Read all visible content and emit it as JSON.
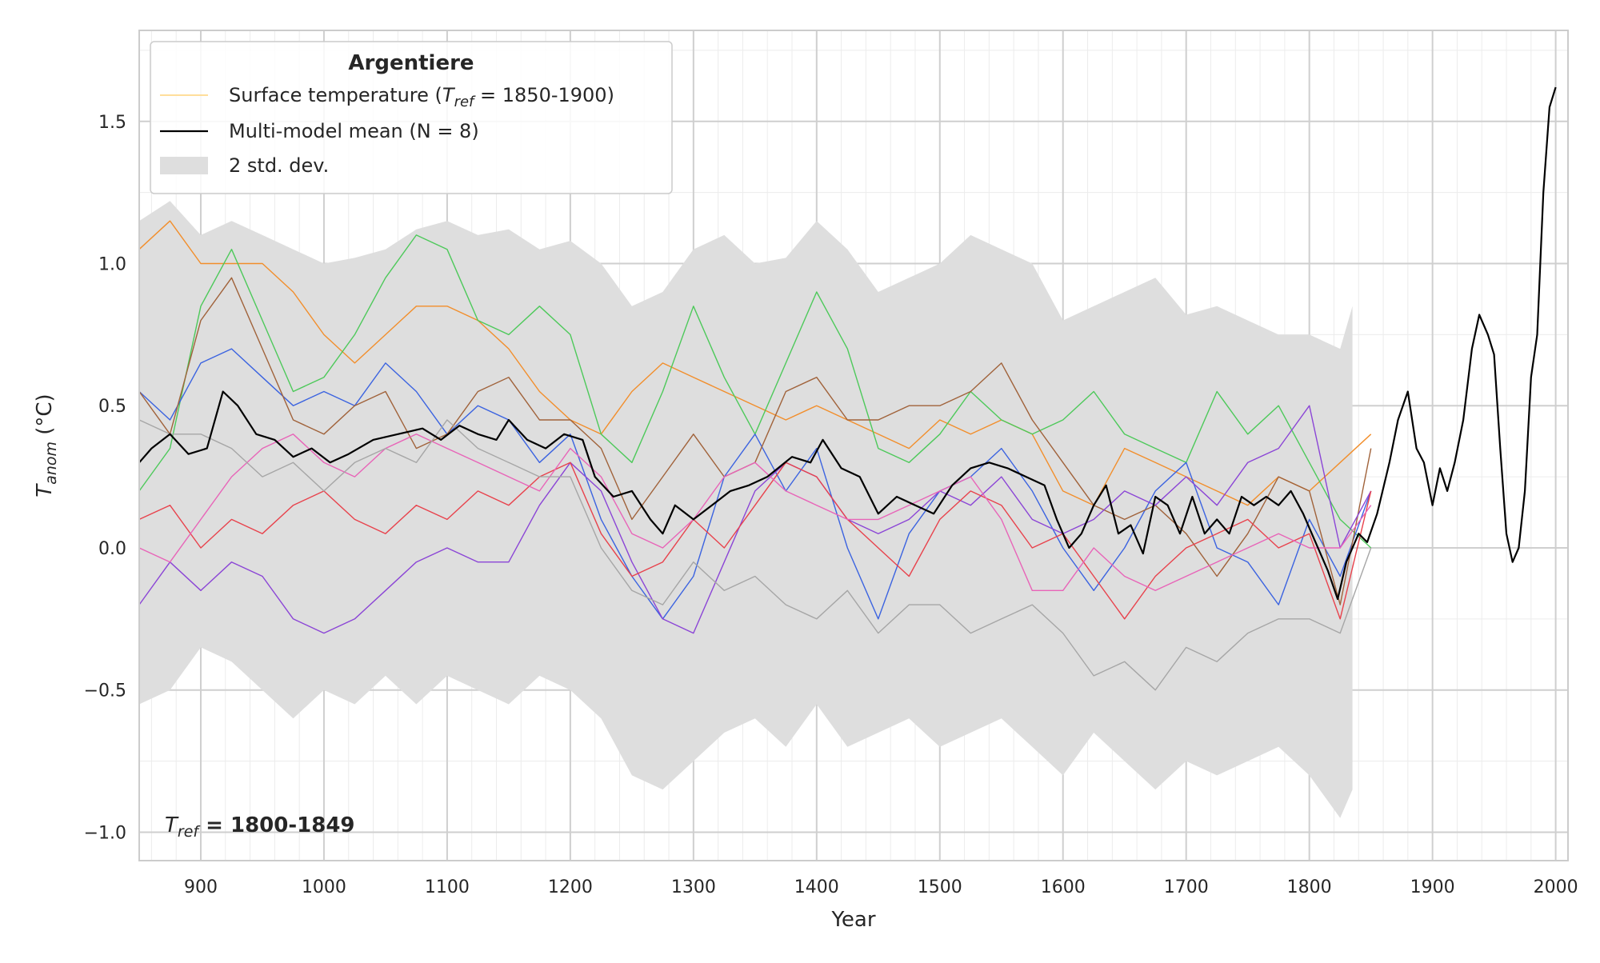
{
  "chart_data": {
    "type": "line",
    "xlabel": "Year",
    "ylabel_main": "T",
    "ylabel_sub": "anom",
    "ylabel_unit": " (°C)",
    "xlim": [
      850,
      2010
    ],
    "ylim": [
      -1.1,
      1.82
    ],
    "grid": true,
    "xticks": [
      900,
      1000,
      1100,
      1200,
      1300,
      1400,
      1500,
      1600,
      1700,
      1800,
      1900,
      2000
    ],
    "yticks": [
      -1.0,
      -0.5,
      0.0,
      0.5,
      1.0,
      1.5
    ],
    "ytick_labels": [
      "−1.0",
      "−0.5",
      "0.0",
      "0.5",
      "1.0",
      "1.5"
    ],
    "legend": {
      "title": "Argentiere",
      "location": "upper-left",
      "entries": [
        {
          "label_pre": "Surface temperature (",
          "label_italic": "T",
          "label_sub": "ref",
          "label_post": " = 1850-1900)",
          "color": "#ffd47a",
          "kind": "line-thin"
        },
        {
          "label": "Multi-model mean (N = 8)",
          "color": "#000000",
          "kind": "line"
        },
        {
          "label": "2 std. dev.",
          "color": "#dedede",
          "kind": "patch"
        }
      ]
    },
    "annotation": {
      "italic": "T",
      "sub": "ref",
      "bold": " = 1800-1849"
    },
    "std_band": {
      "color": "#dedede",
      "x": [
        850,
        875,
        900,
        925,
        950,
        975,
        1000,
        1025,
        1050,
        1075,
        1100,
        1125,
        1150,
        1175,
        1200,
        1225,
        1250,
        1275,
        1300,
        1325,
        1350,
        1375,
        1400,
        1425,
        1450,
        1475,
        1500,
        1525,
        1550,
        1575,
        1600,
        1625,
        1650,
        1675,
        1700,
        1725,
        1750,
        1775,
        1800,
        1825,
        1835
      ],
      "upper": [
        1.15,
        1.22,
        1.1,
        1.15,
        1.1,
        1.05,
        1.0,
        1.02,
        1.05,
        1.12,
        1.15,
        1.1,
        1.12,
        1.05,
        1.08,
        1.0,
        0.85,
        0.9,
        1.05,
        1.1,
        1.0,
        1.02,
        1.15,
        1.05,
        0.9,
        0.95,
        1.0,
        1.1,
        1.05,
        1.0,
        0.8,
        0.85,
        0.9,
        0.95,
        0.82,
        0.85,
        0.8,
        0.75,
        0.75,
        0.7,
        0.85
      ],
      "lower": [
        -0.55,
        -0.5,
        -0.35,
        -0.4,
        -0.5,
        -0.6,
        -0.5,
        -0.55,
        -0.45,
        -0.55,
        -0.45,
        -0.5,
        -0.55,
        -0.45,
        -0.5,
        -0.6,
        -0.8,
        -0.85,
        -0.75,
        -0.65,
        -0.6,
        -0.7,
        -0.55,
        -0.7,
        -0.65,
        -0.6,
        -0.7,
        -0.65,
        -0.6,
        -0.7,
        -0.8,
        -0.65,
        -0.75,
        -0.85,
        -0.75,
        -0.8,
        -0.75,
        -0.7,
        -0.8,
        -0.95,
        -0.85
      ]
    },
    "x": [
      850,
      875,
      900,
      925,
      950,
      975,
      1000,
      1025,
      1050,
      1075,
      1100,
      1125,
      1150,
      1175,
      1200,
      1225,
      1250,
      1275,
      1300,
      1325,
      1350,
      1375,
      1400,
      1425,
      1450,
      1475,
      1500,
      1525,
      1550,
      1575,
      1600,
      1625,
      1650,
      1675,
      1700,
      1725,
      1750,
      1775,
      1800,
      1825,
      1850
    ],
    "series": [
      {
        "color": "#f28e2b",
        "values": [
          1.05,
          1.15,
          1.0,
          1.0,
          1.0,
          0.9,
          0.75,
          0.65,
          0.75,
          0.85,
          0.85,
          0.8,
          0.7,
          0.55,
          0.45,
          0.4,
          0.55,
          0.65,
          0.6,
          0.55,
          0.5,
          0.45,
          0.5,
          0.45,
          0.4,
          0.35,
          0.45,
          0.4,
          0.45,
          0.4,
          0.2,
          0.15,
          0.35,
          0.3,
          0.25,
          0.2,
          0.15,
          0.25,
          0.2,
          0.3,
          0.4
        ]
      },
      {
        "color": "#4dc95a",
        "values": [
          0.2,
          0.35,
          0.85,
          1.05,
          0.8,
          0.55,
          0.6,
          0.75,
          0.95,
          1.1,
          1.05,
          0.8,
          0.75,
          0.85,
          0.75,
          0.4,
          0.3,
          0.55,
          0.85,
          0.6,
          0.4,
          0.65,
          0.9,
          0.7,
          0.35,
          0.3,
          0.4,
          0.55,
          0.45,
          0.4,
          0.45,
          0.55,
          0.4,
          0.35,
          0.3,
          0.55,
          0.4,
          0.5,
          0.3,
          0.1,
          0.0
        ]
      },
      {
        "color": "#3b63e0",
        "values": [
          0.55,
          0.45,
          0.65,
          0.7,
          0.6,
          0.5,
          0.55,
          0.5,
          0.65,
          0.55,
          0.4,
          0.5,
          0.45,
          0.3,
          0.4,
          0.1,
          -0.1,
          -0.25,
          -0.1,
          0.25,
          0.4,
          0.2,
          0.35,
          0.0,
          -0.25,
          0.05,
          0.2,
          0.25,
          0.35,
          0.2,
          0.0,
          -0.15,
          0.0,
          0.2,
          0.3,
          0.0,
          -0.05,
          -0.2,
          0.1,
          -0.1,
          0.2
        ]
      },
      {
        "color": "#a0623a",
        "values": [
          0.55,
          0.4,
          0.8,
          0.95,
          0.7,
          0.45,
          0.4,
          0.5,
          0.55,
          0.35,
          0.4,
          0.55,
          0.6,
          0.45,
          0.45,
          0.35,
          0.1,
          0.25,
          0.4,
          0.25,
          0.3,
          0.55,
          0.6,
          0.45,
          0.45,
          0.5,
          0.5,
          0.55,
          0.65,
          0.45,
          0.3,
          0.15,
          0.1,
          0.15,
          0.05,
          -0.1,
          0.05,
          0.25,
          0.2,
          -0.2,
          0.35
        ]
      },
      {
        "color": "#8b45d6",
        "values": [
          -0.2,
          -0.05,
          -0.15,
          -0.05,
          -0.1,
          -0.25,
          -0.3,
          -0.25,
          -0.15,
          -0.05,
          0.0,
          -0.05,
          -0.05,
          0.15,
          0.3,
          0.2,
          -0.05,
          -0.25,
          -0.3,
          -0.05,
          0.2,
          0.3,
          0.25,
          0.1,
          0.05,
          0.1,
          0.2,
          0.15,
          0.25,
          0.1,
          0.05,
          0.1,
          0.2,
          0.15,
          0.25,
          0.15,
          0.3,
          0.35,
          0.5,
          0.0,
          0.2
        ]
      },
      {
        "color": "#e8424c",
        "values": [
          0.1,
          0.15,
          0.0,
          0.1,
          0.05,
          0.15,
          0.2,
          0.1,
          0.05,
          0.15,
          0.1,
          0.2,
          0.15,
          0.25,
          0.3,
          0.05,
          -0.1,
          -0.05,
          0.1,
          0.0,
          0.15,
          0.3,
          0.25,
          0.1,
          0.0,
          -0.1,
          0.1,
          0.2,
          0.15,
          0.0,
          0.05,
          -0.1,
          -0.25,
          -0.1,
          0.0,
          0.05,
          0.1,
          0.0,
          0.05,
          -0.25,
          0.2
        ]
      },
      {
        "color": "#e864b8",
        "values": [
          0.0,
          -0.05,
          0.1,
          0.25,
          0.35,
          0.4,
          0.3,
          0.25,
          0.35,
          0.4,
          0.35,
          0.3,
          0.25,
          0.2,
          0.35,
          0.25,
          0.05,
          0.0,
          0.1,
          0.25,
          0.3,
          0.2,
          0.15,
          0.1,
          0.1,
          0.15,
          0.2,
          0.25,
          0.1,
          -0.15,
          -0.15,
          0.0,
          -0.1,
          -0.15,
          -0.1,
          -0.05,
          0.0,
          0.05,
          0.0,
          0.0,
          0.15
        ]
      },
      {
        "color": "#a6a6a6",
        "values": [
          0.45,
          0.4,
          0.4,
          0.35,
          0.25,
          0.3,
          0.2,
          0.3,
          0.35,
          0.3,
          0.45,
          0.35,
          0.3,
          0.25,
          0.25,
          0.0,
          -0.15,
          -0.2,
          -0.05,
          -0.15,
          -0.1,
          -0.2,
          -0.25,
          -0.15,
          -0.3,
          -0.2,
          -0.2,
          -0.3,
          -0.25,
          -0.2,
          -0.3,
          -0.45,
          -0.4,
          -0.5,
          -0.35,
          -0.4,
          -0.3,
          -0.25,
          -0.25,
          -0.3,
          0.0
        ]
      }
    ],
    "mean": {
      "color": "#000000",
      "x": [
        850,
        860,
        875,
        890,
        905,
        918,
        930,
        945,
        960,
        975,
        990,
        1005,
        1020,
        1040,
        1060,
        1080,
        1095,
        1110,
        1125,
        1140,
        1150,
        1165,
        1180,
        1195,
        1210,
        1220,
        1235,
        1250,
        1265,
        1275,
        1285,
        1300,
        1315,
        1330,
        1345,
        1360,
        1380,
        1395,
        1405,
        1420,
        1435,
        1450,
        1465,
        1480,
        1495,
        1510,
        1525,
        1540,
        1555,
        1570,
        1585,
        1595,
        1605,
        1615,
        1625,
        1635,
        1645,
        1655,
        1665,
        1675,
        1685,
        1695,
        1705,
        1715,
        1725,
        1735,
        1745,
        1755,
        1765,
        1775,
        1785,
        1795,
        1805,
        1815,
        1823,
        1830,
        1840,
        1847,
        1855,
        1865,
        1872,
        1880,
        1887,
        1893,
        1900,
        1906,
        1912,
        1918,
        1925,
        1932,
        1938,
        1945,
        1950,
        1955,
        1960,
        1965,
        1970,
        1975,
        1980,
        1985,
        1990,
        1995,
        2000
      ],
      "values": [
        0.3,
        0.35,
        0.4,
        0.33,
        0.35,
        0.55,
        0.5,
        0.4,
        0.38,
        0.32,
        0.35,
        0.3,
        0.33,
        0.38,
        0.4,
        0.42,
        0.38,
        0.43,
        0.4,
        0.38,
        0.45,
        0.38,
        0.35,
        0.4,
        0.38,
        0.25,
        0.18,
        0.2,
        0.1,
        0.05,
        0.15,
        0.1,
        0.15,
        0.2,
        0.22,
        0.25,
        0.32,
        0.3,
        0.38,
        0.28,
        0.25,
        0.12,
        0.18,
        0.15,
        0.12,
        0.22,
        0.28,
        0.3,
        0.28,
        0.25,
        0.22,
        0.1,
        0.0,
        0.05,
        0.15,
        0.22,
        0.05,
        0.08,
        -0.02,
        0.18,
        0.15,
        0.05,
        0.18,
        0.05,
        0.1,
        0.05,
        0.18,
        0.15,
        0.18,
        0.15,
        0.2,
        0.12,
        0.02,
        -0.08,
        -0.18,
        -0.05,
        0.05,
        0.02,
        0.12,
        0.3,
        0.45,
        0.55,
        0.35,
        0.3,
        0.15,
        0.28,
        0.2,
        0.3,
        0.45,
        0.7,
        0.82,
        0.75,
        0.68,
        0.35,
        0.05,
        -0.05,
        0.0,
        0.2,
        0.6,
        0.75,
        1.25,
        1.55,
        1.62
      ]
    }
  }
}
